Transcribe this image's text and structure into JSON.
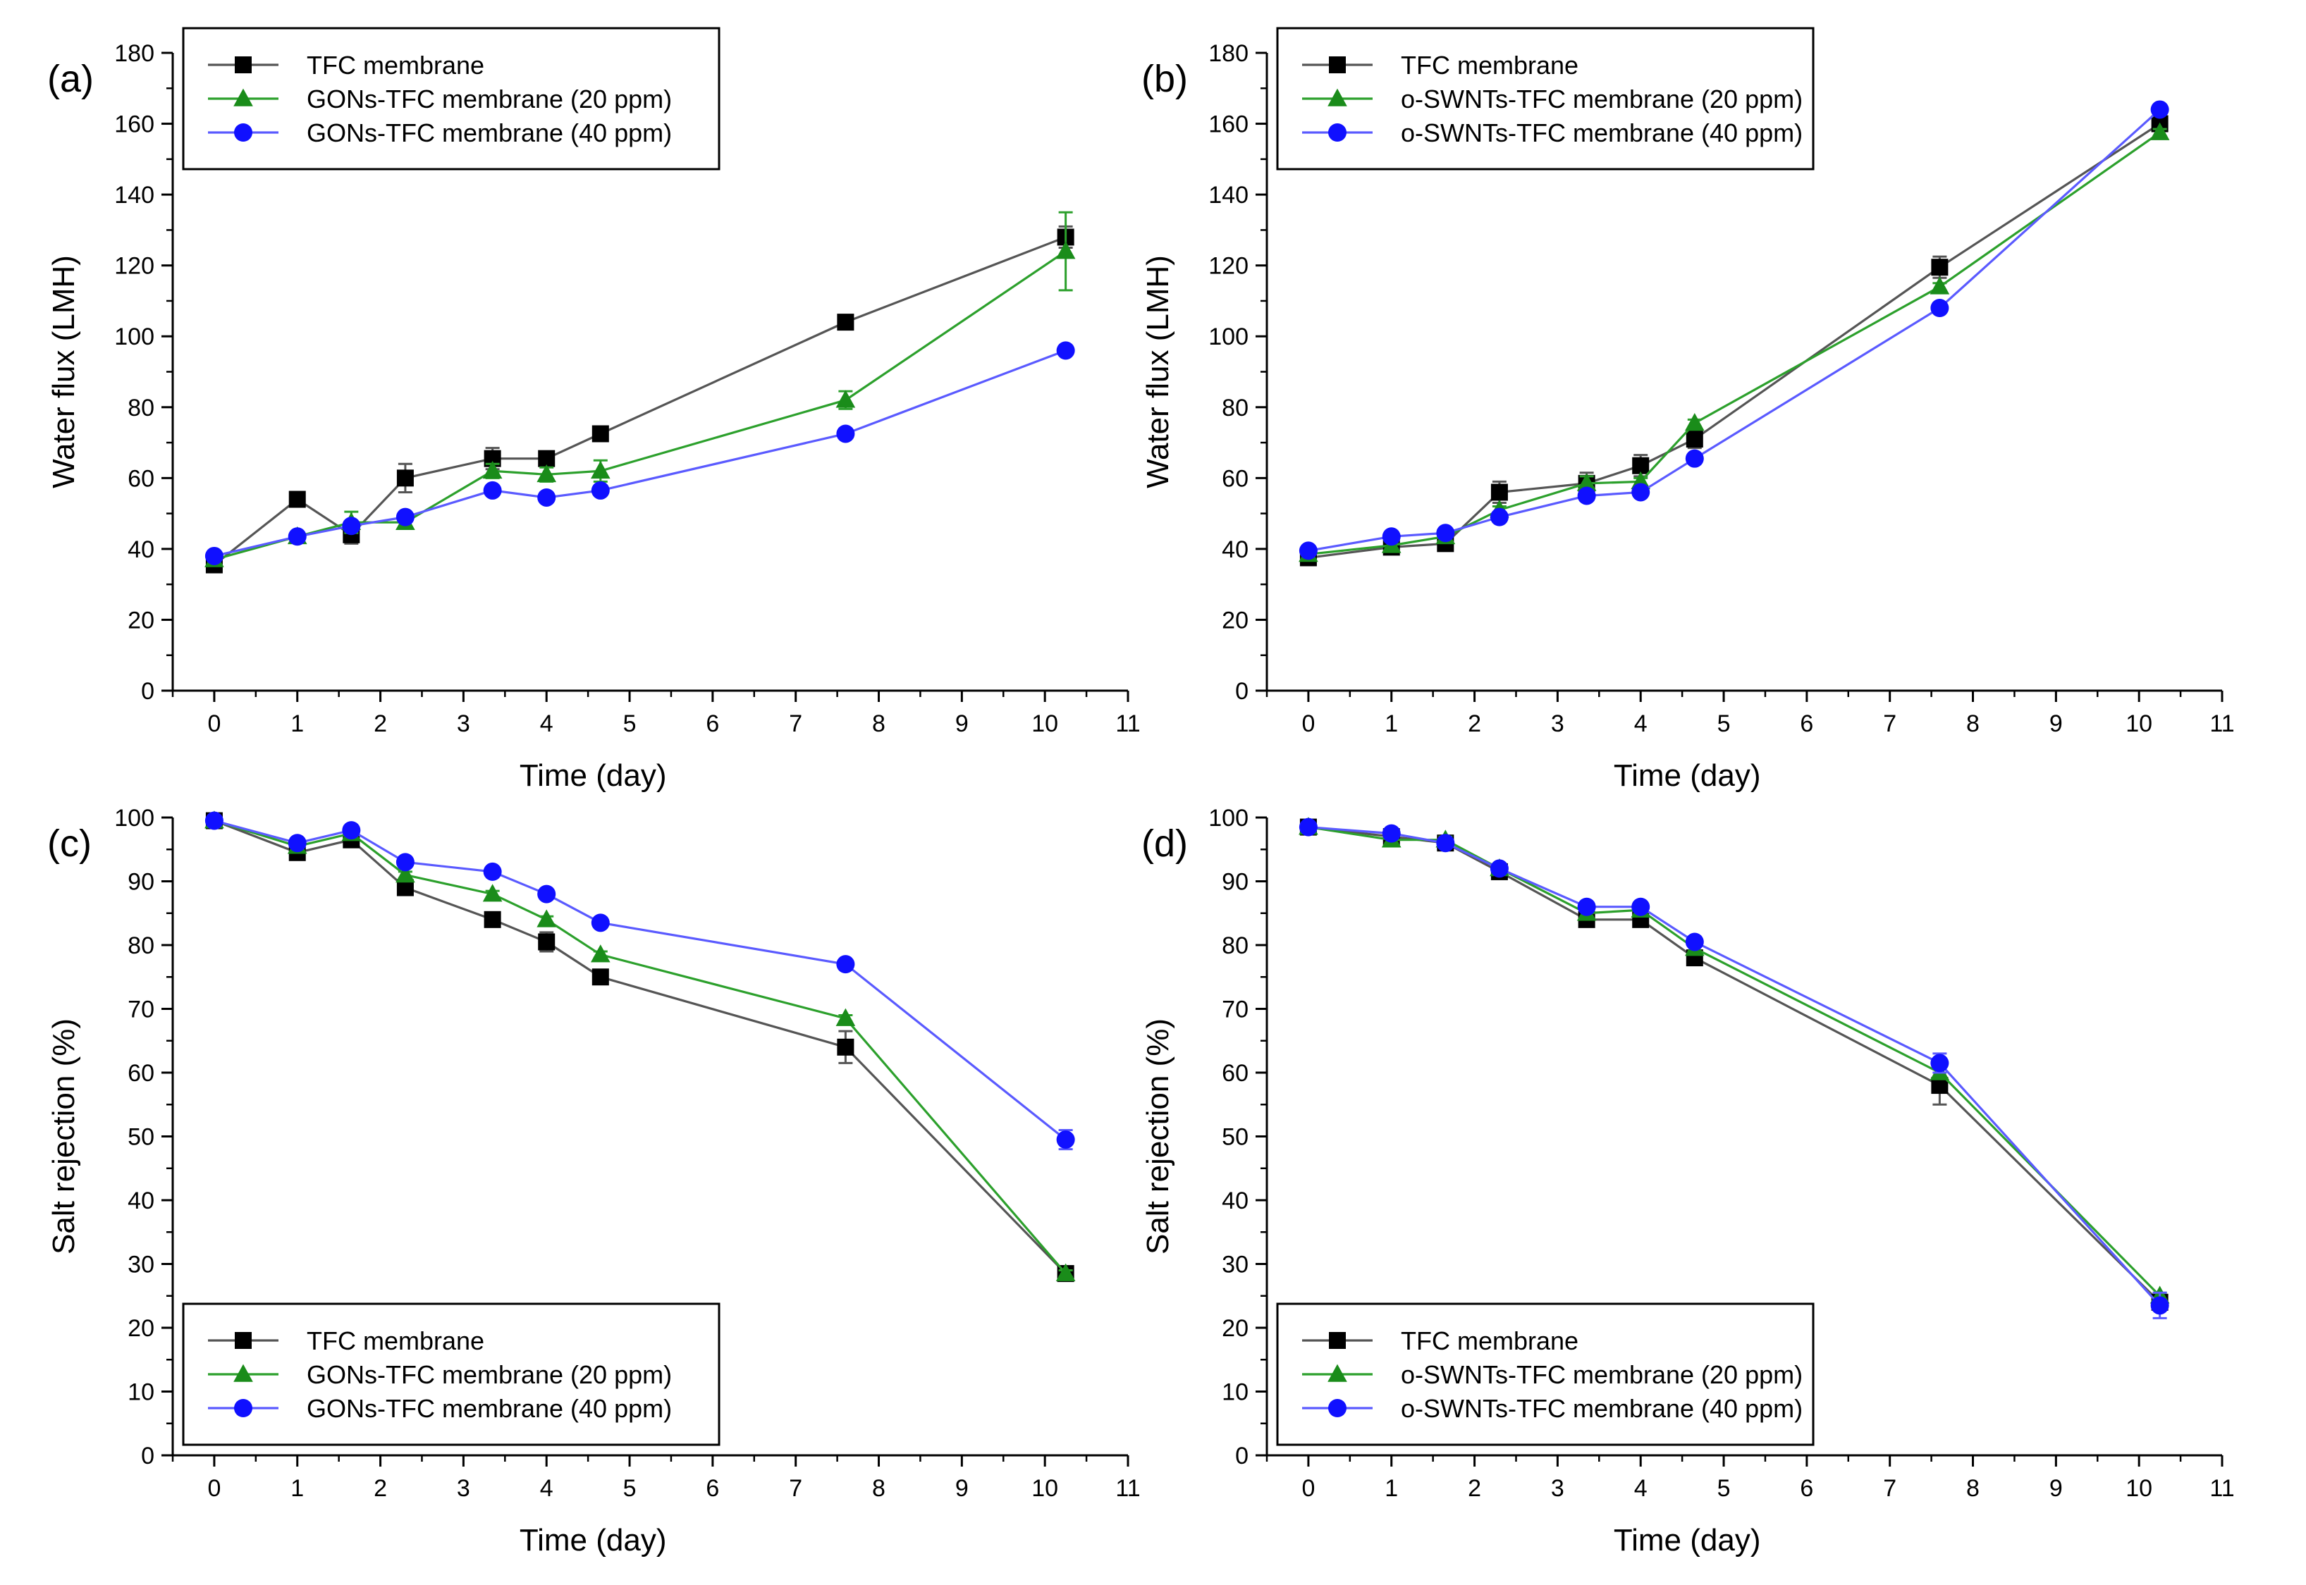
{
  "figure_domain": "Chart",
  "chart_data": [
    {
      "type": "line",
      "panel_label": "(a)",
      "title": "",
      "xlabel": "Time (day)",
      "ylabel": "Water flux (LMH)",
      "xlim": [
        -0.5,
        11
      ],
      "ylim": [
        0,
        180
      ],
      "xticks": [
        0,
        1,
        2,
        3,
        4,
        5,
        6,
        7,
        8,
        9,
        10,
        11
      ],
      "yticks": [
        0,
        20,
        40,
        60,
        80,
        100,
        120,
        140,
        160,
        180
      ],
      "legend_position": "top-left",
      "x": [
        0,
        1,
        1.65,
        2.3,
        3.35,
        4.0,
        4.65,
        7.6,
        10.25
      ],
      "series": [
        {
          "name": "TFC membrane",
          "color": "#555555",
          "marker_color": "#000000",
          "marker": "square",
          "values": [
            35.5,
            54,
            44,
            60,
            65.5,
            65.5,
            72.5,
            104,
            128
          ],
          "errors": [
            1.5,
            1,
            2.5,
            4,
            3,
            2,
            1,
            1,
            3
          ]
        },
        {
          "name": "GONs-TFC membrane (20 ppm)",
          "color": "#2ca02c",
          "marker_color": "#1a8c1a",
          "marker": "triangle",
          "values": [
            37,
            43.5,
            47.5,
            47.5,
            62,
            61,
            62,
            82,
            124
          ],
          "errors": [
            1,
            1,
            3,
            1.5,
            2,
            2,
            3,
            2.5,
            11
          ]
        },
        {
          "name": "GONs-TFC membrane (40 ppm)",
          "color": "#5a5aff",
          "marker_color": "#1010ff",
          "marker": "circle",
          "values": [
            38,
            43.5,
            46.5,
            49,
            56.5,
            54.5,
            56.5,
            72.5,
            96
          ],
          "errors": [
            1,
            1,
            1,
            1,
            1,
            1,
            1,
            1,
            1
          ]
        }
      ]
    },
    {
      "type": "line",
      "panel_label": "(b)",
      "title": "",
      "xlabel": "Time (day)",
      "ylabel": "Water flux (LMH)",
      "xlim": [
        -0.5,
        11
      ],
      "ylim": [
        0,
        180
      ],
      "xticks": [
        0,
        1,
        2,
        3,
        4,
        5,
        6,
        7,
        8,
        9,
        10,
        11
      ],
      "yticks": [
        0,
        20,
        40,
        60,
        80,
        100,
        120,
        140,
        160,
        180
      ],
      "legend_position": "top-left",
      "x": [
        0,
        1,
        1.65,
        2.3,
        3.35,
        4.0,
        4.65,
        7.6,
        10.25
      ],
      "series": [
        {
          "name": "TFC membrane",
          "color": "#555555",
          "marker_color": "#000000",
          "marker": "square",
          "values": [
            37.5,
            40.5,
            41.5,
            56,
            58.5,
            63.5,
            71,
            119.5,
            160
          ],
          "errors": [
            1,
            1,
            1,
            3,
            3,
            3,
            2.5,
            3,
            1
          ]
        },
        {
          "name": "o-SWNTs-TFC membrane (20 ppm)",
          "color": "#2ca02c",
          "marker_color": "#1a8c1a",
          "marker": "triangle",
          "values": [
            38.5,
            41,
            43.5,
            51,
            58.5,
            59,
            75.5,
            114,
            157.5
          ],
          "errors": [
            1,
            1,
            1,
            1,
            2,
            1,
            1,
            1,
            1
          ]
        },
        {
          "name": "o-SWNTs-TFC membrane (40 ppm)",
          "color": "#5a5aff",
          "marker_color": "#1010ff",
          "marker": "circle",
          "values": [
            39.5,
            43.5,
            44.5,
            49,
            55,
            56,
            65.5,
            108,
            164
          ],
          "errors": [
            1,
            1,
            1,
            1,
            1,
            1,
            1,
            1,
            1
          ]
        }
      ]
    },
    {
      "type": "line",
      "panel_label": "(c)",
      "title": "",
      "xlabel": "Time (day)",
      "ylabel": "Salt rejection (%)",
      "xlim": [
        -0.5,
        11
      ],
      "ylim": [
        0,
        100
      ],
      "xticks": [
        0,
        1,
        2,
        3,
        4,
        5,
        6,
        7,
        8,
        9,
        10,
        11
      ],
      "yticks": [
        0,
        10,
        20,
        30,
        40,
        50,
        60,
        70,
        80,
        90,
        100
      ],
      "legend_position": "bottom-left",
      "x": [
        0,
        1,
        1.65,
        2.3,
        3.35,
        4.0,
        4.65,
        7.6,
        10.25
      ],
      "series": [
        {
          "name": "TFC membrane",
          "color": "#555555",
          "marker_color": "#000000",
          "marker": "square",
          "values": [
            99.5,
            94.5,
            96.5,
            89,
            84,
            80.5,
            75,
            64,
            28.5
          ],
          "errors": [
            0.3,
            1,
            1,
            1,
            0.5,
            1.5,
            1,
            2.5,
            1
          ]
        },
        {
          "name": "GONs-TFC membrane (20 ppm)",
          "color": "#2ca02c",
          "marker_color": "#1a8c1a",
          "marker": "triangle",
          "values": [
            99.5,
            95.5,
            97.5,
            91,
            88,
            84,
            78.5,
            68.5,
            28.5
          ],
          "errors": [
            0.3,
            0.5,
            0.5,
            0.5,
            0.5,
            0.5,
            0.5,
            0.5,
            0.5
          ]
        },
        {
          "name": "GONs-TFC membrane (40 ppm)",
          "color": "#5a5aff",
          "marker_color": "#1010ff",
          "marker": "circle",
          "values": [
            99.5,
            96,
            98,
            93,
            91.5,
            88,
            83.5,
            77,
            49.5
          ],
          "errors": [
            0.3,
            0.5,
            0.5,
            0.5,
            0.5,
            0.5,
            0.5,
            0.5,
            1.5
          ]
        }
      ]
    },
    {
      "type": "line",
      "panel_label": "(d)",
      "title": "",
      "xlabel": "Time (day)",
      "ylabel": "Salt rejection (%)",
      "xlim": [
        -0.5,
        11
      ],
      "ylim": [
        0,
        100
      ],
      "xticks": [
        0,
        1,
        2,
        3,
        4,
        5,
        6,
        7,
        8,
        9,
        10,
        11
      ],
      "yticks": [
        0,
        10,
        20,
        30,
        40,
        50,
        60,
        70,
        80,
        90,
        100
      ],
      "legend_position": "bottom-left",
      "x": [
        0,
        1,
        1.65,
        2.3,
        3.35,
        4.0,
        4.65,
        7.6,
        10.25
      ],
      "series": [
        {
          "name": "TFC membrane",
          "color": "#555555",
          "marker_color": "#000000",
          "marker": "square",
          "values": [
            98.5,
            97,
            96,
            91.5,
            84,
            84,
            78,
            58,
            24
          ],
          "errors": [
            0.3,
            0.5,
            0.5,
            0.5,
            0.5,
            0.5,
            0.5,
            3,
            1
          ]
        },
        {
          "name": "o-SWNTs-TFC membrane (20 ppm)",
          "color": "#2ca02c",
          "marker_color": "#1a8c1a",
          "marker": "triangle",
          "values": [
            98.5,
            96.5,
            96.5,
            92,
            85,
            85.5,
            79.5,
            60,
            25
          ],
          "errors": [
            0.3,
            0.5,
            0.5,
            0.5,
            0.5,
            0.5,
            0.5,
            1,
            0.5
          ]
        },
        {
          "name": "o-SWNTs-TFC membrane (40 ppm)",
          "color": "#5a5aff",
          "marker_color": "#1010ff",
          "marker": "circle",
          "values": [
            98.5,
            97.5,
            96,
            92,
            86,
            86,
            80.5,
            61.5,
            23.5
          ],
          "errors": [
            0.3,
            0.5,
            0.5,
            0.5,
            0.5,
            0.5,
            0.5,
            1.5,
            2
          ]
        }
      ]
    }
  ]
}
